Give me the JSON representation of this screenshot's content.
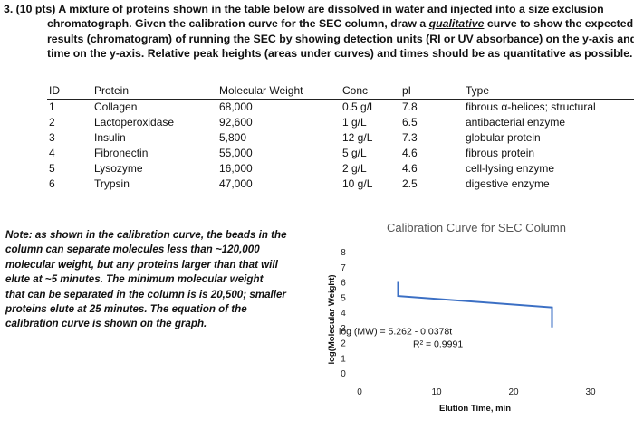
{
  "question": {
    "lines": [
      "3. (10 pts) A mixture of proteins shown in the table below are dissolved in water and injected into a size exclusion",
      "chromatograph. Given the calibration curve for the SEC column, draw a ",
      "results (chromatogram) of running the SEC by showing detection units (RI or UV absorbance) on the y-axis and",
      "time on the y-axis. Relative peak heights (areas under curves) and times should be as quantitative as possible."
    ],
    "emphasis": "qualitative",
    "line2_tail": " curve to show the expected"
  },
  "table": {
    "headers": [
      "ID",
      "Protein",
      "Molecular Weight",
      "Conc",
      "pI",
      "Type"
    ],
    "rows": [
      [
        "1",
        "Collagen",
        "68,000",
        "0.5 g/L",
        "7.8",
        "fibrous α-helices; structural"
      ],
      [
        "2",
        "Lactoperoxidase",
        "92,600",
        "1 g/L",
        "6.5",
        "antibacterial enzyme"
      ],
      [
        "3",
        "Insulin",
        "5,800",
        "12 g/L",
        "7.3",
        "globular protein"
      ],
      [
        "4",
        "Fibronectin",
        "55,000",
        "5 g/L",
        "4.6",
        "fibrous protein"
      ],
      [
        "5",
        "Lysozyme",
        "16,000",
        "2 g/L",
        "4.6",
        "cell-lysing enzyme"
      ],
      [
        "6",
        "Trypsin",
        "47,000",
        "10 g/L",
        "2.5",
        "digestive enzyme"
      ]
    ]
  },
  "note": {
    "lines": [
      "Note: as shown in the calibration curve, the beads in the",
      "column can separate molecules less than ~120,000",
      "molecular weight, but any proteins larger than that will",
      "elute at ~5 minutes. The minimum molecular weight",
      "that can be separated in the column is is 20,500; smaller",
      "proteins elute at 25 minutes. The equation of the",
      "calibration curve is shown on the graph."
    ]
  },
  "chart_data": {
    "type": "line",
    "title": "Calibration Curve for SEC Column",
    "xlabel": "Elution Time, min",
    "ylabel": "log(Molecular Weight)",
    "xlim": [
      0,
      30
    ],
    "ylim": [
      0,
      8
    ],
    "xticks": [
      "0",
      "10",
      "20",
      "30"
    ],
    "yticks": [
      "0",
      "1",
      "2",
      "3",
      "4",
      "5",
      "6",
      "7",
      "8"
    ],
    "series": [
      {
        "x": [
          5,
          5,
          25,
          25
        ],
        "y": [
          6.0,
          5.07,
          4.32,
          3.0
        ]
      }
    ],
    "equation": "log (MW) = 5.262 - 0.0378t",
    "r_squared": "R² = 0.9991",
    "line_color": "#3b6fc4",
    "grid": false
  }
}
